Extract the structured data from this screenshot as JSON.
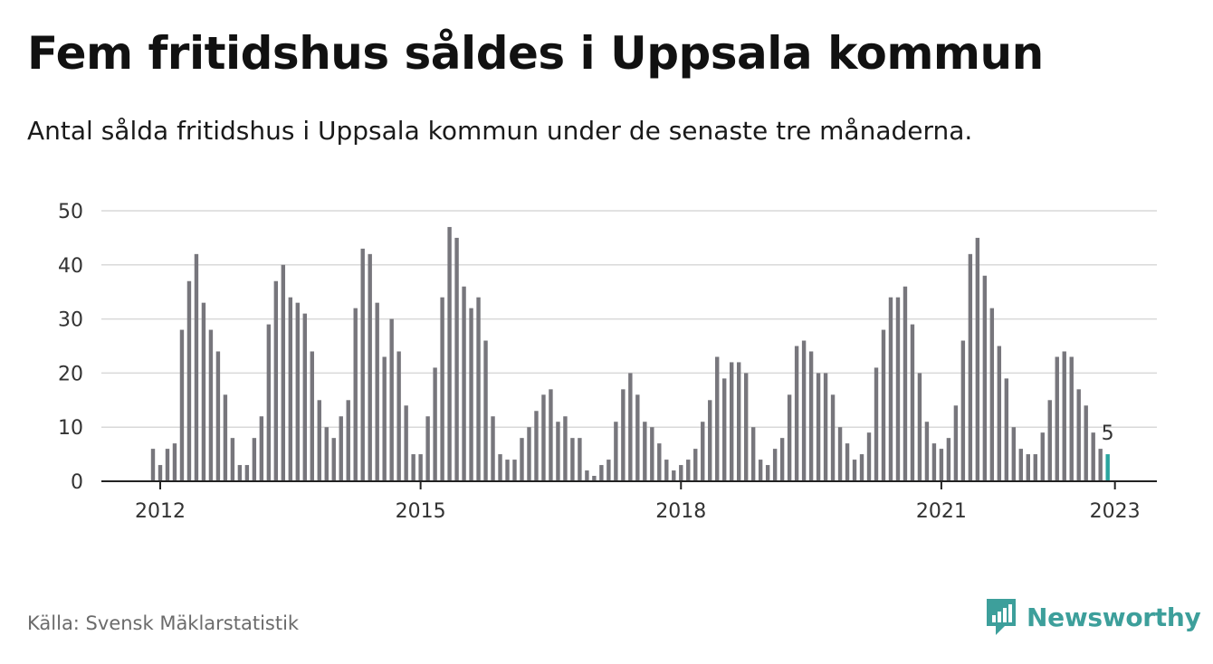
{
  "title": "Fem fritidshus såldes i Uppsala kommun",
  "subtitle": "Antal sålda fritidshus i Uppsala kommun under de senaste tre månaderna.",
  "source": "Källa: Svensk Mäklarstatistik",
  "brand": {
    "name": "Newsworthy",
    "icon": "newsworthy-logo-icon"
  },
  "colors": {
    "bar": "#77767c",
    "highlight": "#2aa59f",
    "grid": "#d9d9d9",
    "axis": "#222222",
    "brand": "#3d9f9b"
  },
  "chart_data": {
    "type": "bar",
    "x_start": "2011-12",
    "xticks": [
      "2012",
      "2015",
      "2018",
      "2021",
      "2023"
    ],
    "yticks": [
      0,
      10,
      20,
      30,
      40,
      50
    ],
    "ylim": [
      0,
      50
    ],
    "grid": true,
    "last_value_label": "5",
    "values": [
      6,
      3,
      6,
      7,
      28,
      37,
      42,
      33,
      28,
      24,
      16,
      8,
      3,
      3,
      8,
      12,
      29,
      37,
      40,
      34,
      33,
      31,
      24,
      15,
      10,
      8,
      12,
      15,
      32,
      43,
      42,
      33,
      23,
      30,
      24,
      14,
      5,
      5,
      12,
      21,
      34,
      47,
      45,
      36,
      32,
      34,
      26,
      12,
      5,
      4,
      4,
      8,
      10,
      13,
      16,
      17,
      11,
      12,
      8,
      8,
      2,
      1,
      3,
      4,
      11,
      17,
      20,
      16,
      11,
      10,
      7,
      4,
      2,
      3,
      4,
      6,
      11,
      15,
      23,
      19,
      22,
      22,
      20,
      10,
      4,
      3,
      6,
      8,
      16,
      25,
      26,
      24,
      20,
      20,
      16,
      10,
      7,
      4,
      5,
      9,
      21,
      28,
      34,
      34,
      36,
      29,
      20,
      11,
      7,
      6,
      8,
      14,
      26,
      42,
      45,
      38,
      32,
      25,
      19,
      10,
      6,
      5,
      5,
      9,
      15,
      23,
      24,
      23,
      17,
      14,
      9,
      6,
      5
    ]
  }
}
